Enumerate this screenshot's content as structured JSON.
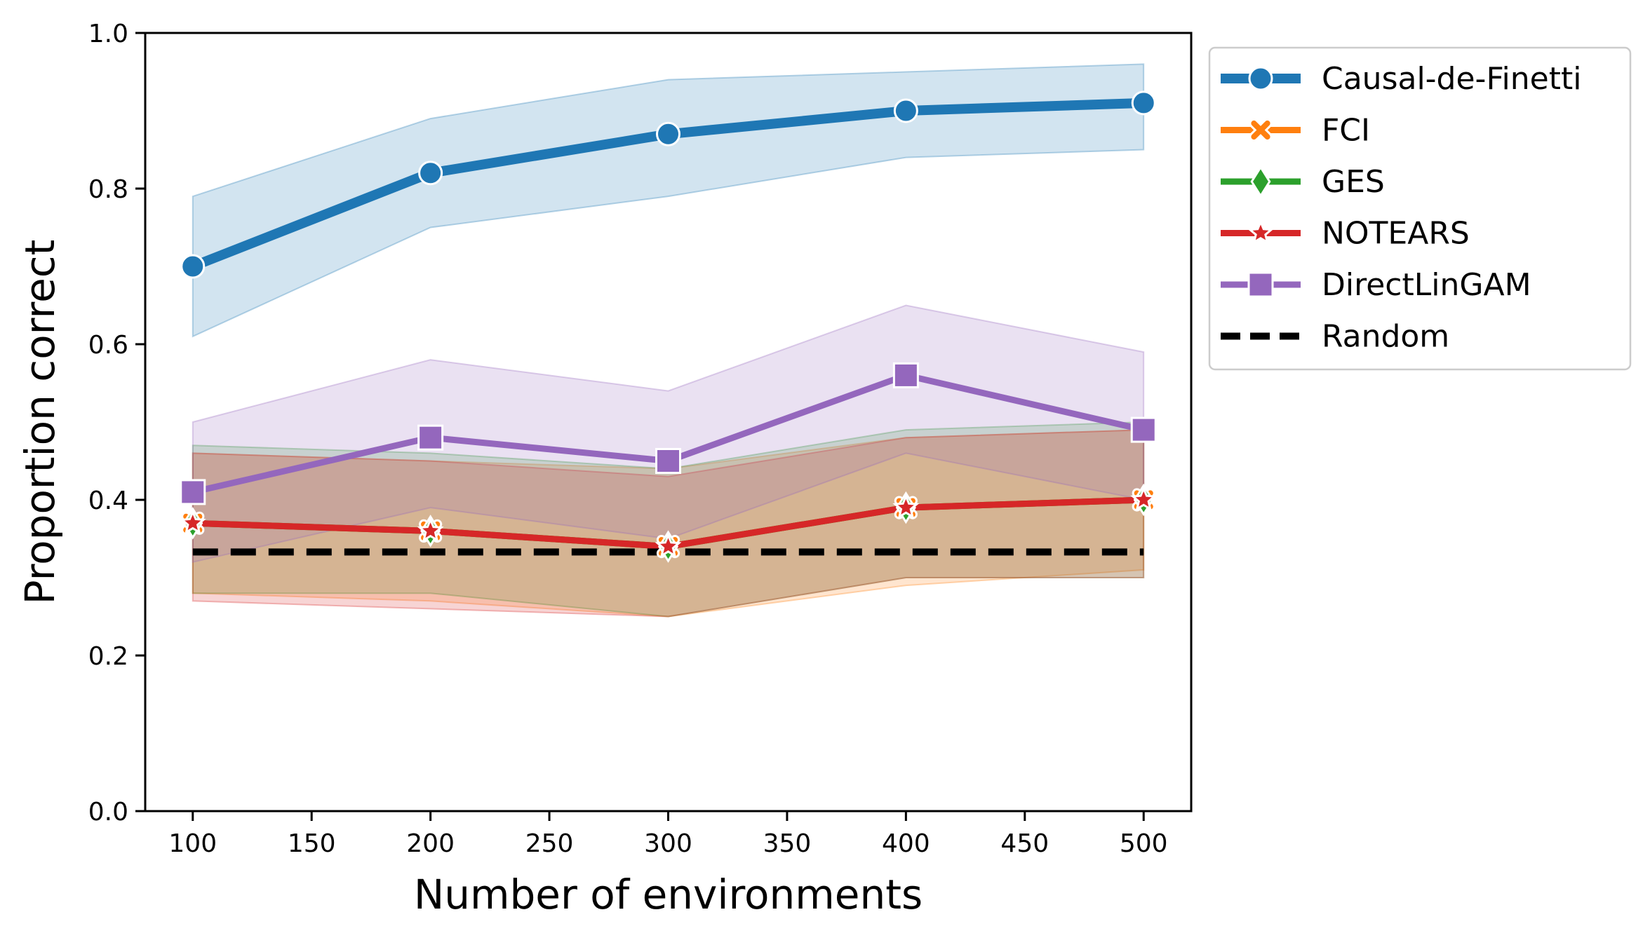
{
  "chart_data": {
    "type": "line",
    "title": "",
    "xlabel": "Number of environments",
    "ylabel": "Proportion correct",
    "x": [
      100,
      200,
      300,
      400,
      500
    ],
    "xlim": [
      80,
      520
    ],
    "ylim": [
      0.0,
      1.0
    ],
    "xticks": [
      "100",
      "150",
      "200",
      "250",
      "300",
      "350",
      "400",
      "450",
      "500"
    ],
    "yticks": [
      "0.0",
      "0.2",
      "0.4",
      "0.6",
      "0.8",
      "1.0"
    ],
    "grid": false,
    "legend_position": "outside-top-right",
    "series": [
      {
        "name": "Causal-de-Finetti",
        "color": "#1f77b4",
        "marker": "circle",
        "line": "solid",
        "values": [
          0.7,
          0.82,
          0.87,
          0.9,
          0.91
        ],
        "ci_lower": [
          0.61,
          0.75,
          0.79,
          0.84,
          0.85
        ],
        "ci_upper": [
          0.79,
          0.89,
          0.94,
          0.95,
          0.96
        ]
      },
      {
        "name": "FCI",
        "color": "#ff7f0e",
        "marker": "x",
        "line": "solid",
        "values": [
          0.37,
          0.36,
          0.34,
          0.39,
          0.4
        ],
        "ci_lower": [
          0.28,
          0.27,
          0.25,
          0.29,
          0.31
        ],
        "ci_upper": [
          0.46,
          0.45,
          0.44,
          0.48,
          0.49
        ]
      },
      {
        "name": "GES",
        "color": "#2ca02c",
        "marker": "diamond",
        "line": "solid",
        "values": [
          0.37,
          0.36,
          0.34,
          0.39,
          0.4
        ],
        "ci_lower": [
          0.28,
          0.28,
          0.25,
          0.3,
          0.3
        ],
        "ci_upper": [
          0.47,
          0.46,
          0.44,
          0.49,
          0.5
        ]
      },
      {
        "name": "NOTEARS",
        "color": "#d62728",
        "marker": "star",
        "line": "solid",
        "values": [
          0.37,
          0.36,
          0.34,
          0.39,
          0.4
        ],
        "ci_lower": [
          0.27,
          0.26,
          0.25,
          0.3,
          0.3
        ],
        "ci_upper": [
          0.46,
          0.45,
          0.43,
          0.48,
          0.49
        ]
      },
      {
        "name": "DirectLinGAM",
        "color": "#9467bd",
        "marker": "square",
        "line": "solid",
        "values": [
          0.41,
          0.48,
          0.45,
          0.56,
          0.49
        ],
        "ci_lower": [
          0.32,
          0.39,
          0.35,
          0.46,
          0.4
        ],
        "ci_upper": [
          0.5,
          0.58,
          0.54,
          0.65,
          0.59
        ]
      },
      {
        "name": "Random",
        "color": "#000000",
        "marker": "none",
        "line": "dashed",
        "values": [
          0.333,
          0.333,
          0.333,
          0.333,
          0.333
        ]
      }
    ]
  }
}
